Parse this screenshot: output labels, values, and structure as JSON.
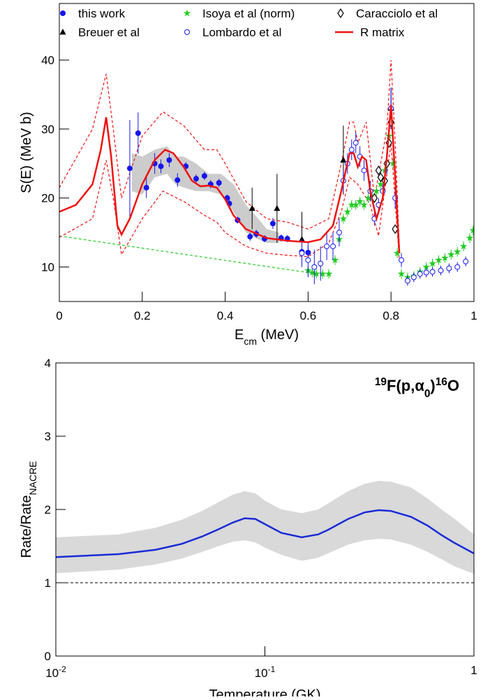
{
  "chart_data": [
    {
      "type": "scatter",
      "xlabel": [
        {
          "text": "E"
        },
        {
          "text": "cm",
          "pos": "sub"
        },
        {
          "text": " (MeV)"
        }
      ],
      "ylabel": [
        {
          "text": "S(E) (MeV b)"
        }
      ],
      "xlim": [
        0,
        1
      ],
      "ylim": [
        5,
        48.2
      ],
      "xticks": [
        0,
        0.2,
        0.4,
        0.6,
        0.8,
        1
      ],
      "yticks": [
        10,
        20,
        30,
        40
      ],
      "legend": "top",
      "series": [
        {
          "kind": "band",
          "color": "#cccccc",
          "x": [
            0.175,
            0.2,
            0.23,
            0.26,
            0.28,
            0.3,
            0.33,
            0.36,
            0.39,
            0.42,
            0.45,
            0.48,
            0.5,
            0.53
          ],
          "lower": [
            21,
            20.5,
            23,
            23.5,
            22,
            21.5,
            21,
            21,
            20.5,
            18,
            15,
            14,
            13.5,
            13.5
          ],
          "upper": [
            26.5,
            26,
            27,
            27.5,
            26,
            26,
            25,
            23.5,
            23.5,
            22,
            19,
            17,
            15.5,
            15
          ]
        },
        {
          "kind": "line",
          "color": "#22cc22",
          "dash": true,
          "x": [
            0,
            0.6
          ],
          "values": [
            14.5,
            9.2
          ]
        },
        {
          "kind": "line",
          "color": "#ee1111",
          "dash": true,
          "x": [
            0,
            0.08,
            0.113,
            0.13,
            0.15,
            0.2,
            0.25,
            0.3,
            0.35,
            0.38,
            0.4,
            0.45,
            0.5,
            0.55,
            0.6,
            0.65,
            0.68,
            0.7,
            0.71,
            0.72,
            0.74,
            0.76,
            0.79,
            0.8,
            0.81,
            0.82
          ],
          "values": [
            21.5,
            30,
            38,
            30,
            20,
            29,
            32.5,
            30.5,
            27,
            27,
            25,
            19.5,
            17,
            16.5,
            15.5,
            17,
            25,
            31,
            31,
            28,
            31,
            20,
            30,
            40,
            28,
            13
          ]
        },
        {
          "kind": "line",
          "color": "#ee1111",
          "dash": true,
          "x": [
            0,
            0.08,
            0.113,
            0.13,
            0.15,
            0.2,
            0.25,
            0.3,
            0.35,
            0.38,
            0.4,
            0.45,
            0.5,
            0.55,
            0.6,
            0.65,
            0.68,
            0.7,
            0.72,
            0.75,
            0.77,
            0.8,
            0.82
          ],
          "values": [
            14.3,
            17,
            25.5,
            20,
            11.8,
            17,
            21,
            19.5,
            17.5,
            16.5,
            15,
            13,
            12,
            11.7,
            11.5,
            13.5,
            18,
            23,
            22,
            19,
            14.5,
            28,
            11
          ]
        },
        {
          "name": "this work",
          "kind": "points",
          "marker": "circle",
          "color": "#1515ee",
          "x": [
            0.17,
            0.19,
            0.21,
            0.23,
            0.245,
            0.265,
            0.285,
            0.305,
            0.33,
            0.35,
            0.365,
            0.385,
            0.405,
            0.41,
            0.43,
            0.46,
            0.475,
            0.495,
            0.515,
            0.535,
            0.55,
            0.585,
            0.6
          ],
          "values": [
            24.3,
            29.4,
            21.5,
            25,
            24.6,
            25.5,
            22.6,
            24.6,
            22.8,
            23.2,
            22,
            22.2,
            20,
            19.2,
            16.8,
            14.4,
            14.8,
            14.1,
            16.3,
            14.2,
            14.1,
            12.2,
            12.1
          ],
          "errors": [
            7,
            3,
            1.5,
            1.5,
            1,
            1,
            1,
            0.6,
            0.6,
            0.6,
            0.6,
            0.6,
            0.5,
            0.5,
            0.5,
            0.6,
            0.6,
            0.5,
            0.8,
            0.5,
            0.5,
            1,
            1
          ]
        },
        {
          "name": "Breuer et al",
          "kind": "points",
          "marker": "triangle",
          "color": "#000000",
          "x": [
            0.465,
            0.525,
            0.585,
            0.685,
            0.8
          ],
          "values": [
            18.5,
            18.5,
            14,
            25.5,
            33
          ],
          "errors": [
            3,
            5,
            4,
            5,
            3
          ]
        },
        {
          "name": "Isoya et al (norm)",
          "kind": "points",
          "marker": "star",
          "color": "#22cc22",
          "x": [
            0.6,
            0.61,
            0.62,
            0.635,
            0.65,
            0.665,
            0.675,
            0.685,
            0.695,
            0.705,
            0.715,
            0.725,
            0.735,
            0.745,
            0.755,
            0.765,
            0.775,
            0.785,
            0.795,
            0.805,
            0.815,
            0.825,
            0.84,
            0.855,
            0.87,
            0.885,
            0.9,
            0.915,
            0.93,
            0.945,
            0.96,
            0.975,
            0.99,
            0.998
          ],
          "values": [
            9.5,
            9.2,
            9,
            9,
            9,
            11,
            14,
            17,
            18,
            19,
            19,
            19.5,
            19,
            20,
            20,
            21,
            22,
            24,
            29,
            25,
            12,
            9,
            8.5,
            8.7,
            9.3,
            10,
            10.5,
            11,
            11.3,
            11.8,
            12.2,
            13,
            14.2,
            15.3
          ],
          "errors": [
            0.7,
            0.7,
            0.7,
            0.7,
            0.7,
            0.7,
            0.7,
            0.7,
            0.7,
            0.7,
            0.7,
            0.7,
            0.7,
            0.7,
            0.7,
            0.7,
            0.7,
            0.7,
            0.7,
            0.7,
            0.7,
            0.7,
            0.7,
            0.7,
            0.7,
            0.7,
            0.7,
            0.7,
            0.7,
            0.7,
            0.7,
            0.7,
            0.7,
            0.7
          ]
        },
        {
          "name": "Lombardo et al",
          "kind": "points",
          "marker": "open-circle",
          "color": "#1515ee",
          "x": [
            0.585,
            0.6,
            0.615,
            0.63,
            0.645,
            0.66,
            0.675,
            0.685,
            0.695,
            0.705,
            0.715,
            0.725,
            0.735,
            0.75,
            0.76,
            0.77,
            0.78,
            0.79,
            0.8,
            0.81,
            0.825,
            0.84,
            0.855,
            0.87,
            0.885,
            0.9,
            0.92,
            0.94,
            0.96,
            0.98
          ],
          "values": [
            12,
            11,
            10,
            10.5,
            13,
            13,
            15,
            22.5,
            25,
            27,
            28,
            26,
            24,
            21,
            17,
            19,
            21,
            25,
            33,
            20,
            11,
            8,
            8.5,
            9,
            9.2,
            9.3,
            9.5,
            9.8,
            10,
            10.8
          ],
          "errors": [
            2,
            2.5,
            2.5,
            2.5,
            2,
            2,
            2,
            1.5,
            1.5,
            1.5,
            1.5,
            1.5,
            1.5,
            1.5,
            1,
            1,
            1,
            1.5,
            3,
            1.5,
            1,
            0.7,
            0.7,
            0.7,
            0.7,
            0.7,
            0.7,
            0.7,
            0.7,
            0.7
          ]
        },
        {
          "name": "Caracciolo et al",
          "kind": "points",
          "marker": "diamond",
          "color": "#000000",
          "x": [
            0.76,
            0.77,
            0.775,
            0.785,
            0.79,
            0.795,
            0.8,
            0.81
          ],
          "values": [
            20,
            24,
            23,
            22.5,
            25,
            28,
            31,
            15.5
          ]
        },
        {
          "name": "R matrix",
          "kind": "line",
          "color": "#ee1111",
          "x": [
            0,
            0.04,
            0.08,
            0.1,
            0.113,
            0.125,
            0.14,
            0.15,
            0.17,
            0.2,
            0.23,
            0.255,
            0.275,
            0.3,
            0.32,
            0.34,
            0.36,
            0.38,
            0.4,
            0.42,
            0.45,
            0.5,
            0.55,
            0.6,
            0.63,
            0.66,
            0.68,
            0.7,
            0.71,
            0.72,
            0.73,
            0.74,
            0.75,
            0.765,
            0.78,
            0.79,
            0.8,
            0.81,
            0.82
          ],
          "values": [
            18,
            19,
            22,
            27,
            31.7,
            26,
            16,
            14.7,
            17,
            22,
            25.5,
            27,
            26.5,
            24.5,
            22.5,
            21.7,
            21.8,
            21.5,
            19.8,
            17.5,
            15.5,
            14.2,
            13.8,
            13.6,
            14,
            16,
            21,
            26.5,
            26.5,
            24.5,
            26,
            25.5,
            21,
            17,
            20,
            26,
            33.5,
            23,
            12
          ]
        }
      ]
    },
    {
      "type": "line",
      "xlabel": [
        {
          "text": "Temperature (GK)"
        }
      ],
      "ylabel": [
        {
          "text": "Rate/Rate"
        },
        {
          "text": "NACRE",
          "pos": "sub"
        }
      ],
      "annotation": [
        {
          "text": "19",
          "pos": "sup"
        },
        {
          "text": "F(p,"
        },
        {
          "text": "α"
        },
        {
          "text": "0",
          "pos": "sub"
        },
        {
          "text": ")"
        },
        {
          "text": "16",
          "pos": "sup"
        },
        {
          "text": "O"
        }
      ],
      "xlog": true,
      "xlim": [
        0.01,
        1
      ],
      "ylim": [
        0,
        4
      ],
      "xticks": [
        {
          "value": 0.01,
          "label": "10",
          "exponent": "-2"
        },
        {
          "value": 0.1,
          "label": "10",
          "exponent": "-1"
        },
        1
      ],
      "yticks": [
        0,
        1,
        2,
        3,
        4
      ],
      "reference_line": 1,
      "series": [
        {
          "kind": "band",
          "color": "#d9d9d9",
          "x": [
            0.01,
            0.02,
            0.03,
            0.04,
            0.05,
            0.06,
            0.07,
            0.08,
            0.09,
            0.1,
            0.12,
            0.15,
            0.18,
            0.2,
            0.25,
            0.3,
            0.35,
            0.4,
            0.5,
            0.6,
            0.7,
            0.8,
            1
          ],
          "lower": [
            1.13,
            1.18,
            1.25,
            1.33,
            1.42,
            1.5,
            1.56,
            1.58,
            1.55,
            1.48,
            1.38,
            1.3,
            1.34,
            1.4,
            1.52,
            1.58,
            1.6,
            1.59,
            1.52,
            1.42,
            1.32,
            1.23,
            1.12
          ],
          "upper": [
            1.62,
            1.66,
            1.75,
            1.86,
            1.98,
            2.1,
            2.2,
            2.25,
            2.22,
            2.12,
            2.0,
            1.95,
            2.0,
            2.08,
            2.25,
            2.35,
            2.39,
            2.38,
            2.3,
            2.15,
            2.0,
            1.88,
            1.66
          ]
        },
        {
          "kind": "line",
          "color": "#1a2bd6",
          "x": [
            0.01,
            0.02,
            0.03,
            0.04,
            0.05,
            0.06,
            0.07,
            0.08,
            0.09,
            0.1,
            0.12,
            0.15,
            0.18,
            0.2,
            0.25,
            0.3,
            0.35,
            0.4,
            0.5,
            0.6,
            0.7,
            0.8,
            1
          ],
          "values": [
            1.35,
            1.39,
            1.45,
            1.53,
            1.63,
            1.73,
            1.82,
            1.88,
            1.87,
            1.8,
            1.68,
            1.62,
            1.66,
            1.72,
            1.87,
            1.96,
            1.99,
            1.98,
            1.9,
            1.78,
            1.65,
            1.55,
            1.4
          ]
        }
      ]
    }
  ]
}
